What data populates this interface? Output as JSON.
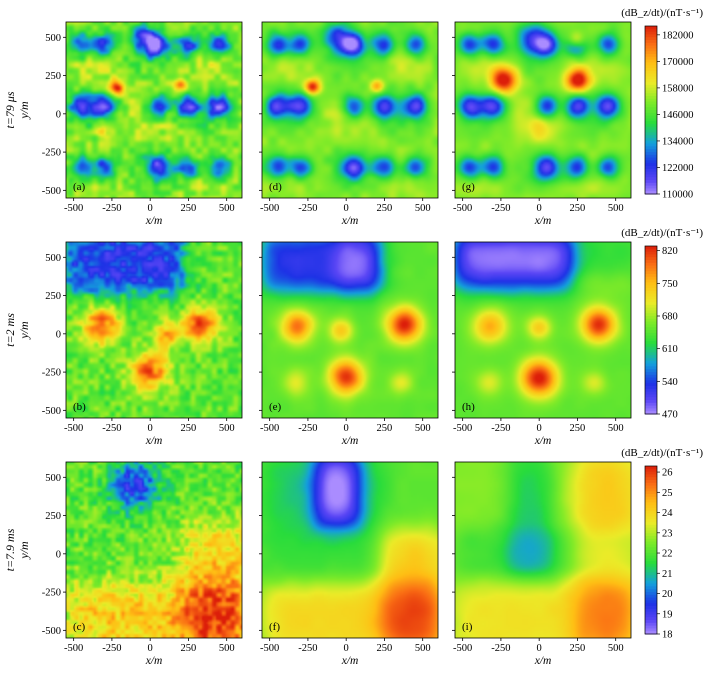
{
  "figure": {
    "rows": [
      {
        "time_label": "t=79 μs",
        "y_label": "y/m",
        "colorbar": {
          "title": "(dB_z/dt)/(nT·s⁻¹)",
          "ticks": [
            "110000",
            "122000",
            "134000",
            "146000",
            "158000",
            "170000",
            "182000"
          ],
          "range": [
            110000,
            186000
          ]
        },
        "panels": [
          {
            "label": "(a)"
          },
          {
            "label": "(d)"
          },
          {
            "label": "(g)"
          }
        ]
      },
      {
        "time_label": "t=2 ms",
        "y_label": "y/m",
        "colorbar": {
          "title": "(dB_z/dt)/(nT·s⁻¹)",
          "ticks": [
            "470",
            "540",
            "610",
            "680",
            "750",
            "820"
          ],
          "range": [
            470,
            830
          ]
        },
        "panels": [
          {
            "label": "(b)"
          },
          {
            "label": "(e)"
          },
          {
            "label": "(h)"
          }
        ]
      },
      {
        "time_label": "t=7.9 ms",
        "y_label": "y/m",
        "colorbar": {
          "title": "(dB_z/dt)/(nT·s⁻¹)",
          "ticks": [
            "18",
            "19",
            "20",
            "21",
            "22",
            "23",
            "24",
            "25",
            "26"
          ],
          "range": [
            18,
            26.3
          ]
        },
        "panels": [
          {
            "label": "(c)"
          },
          {
            "label": "(f)"
          },
          {
            "label": "(i)"
          }
        ]
      }
    ],
    "x_label": "x/m",
    "x_ticks": [
      "-500",
      "-250",
      "0",
      "250",
      "500"
    ],
    "y_ticks": [
      "500",
      "250",
      "0",
      "-250",
      "-500"
    ]
  },
  "chart_data": [
    {
      "type": "heatmap",
      "panel": "(a)",
      "time": "79 μs",
      "x_range": [
        -550,
        600
      ],
      "y_range": [
        -550,
        600
      ],
      "colorbar_range": [
        110000,
        186000
      ],
      "description_values": {
        "background": 140000,
        "low_anomalies": 118000,
        "high_anomalies": [
          {
            "x": -225,
            "y": 175,
            "value": 178000
          },
          {
            "x": 200,
            "y": 175,
            "value": 165000
          }
        ]
      }
    },
    {
      "type": "heatmap",
      "panel": "(d)",
      "time": "79 μs",
      "x_range": [
        -550,
        600
      ],
      "y_range": [
        -550,
        600
      ],
      "colorbar_range": [
        110000,
        186000
      ]
    },
    {
      "type": "heatmap",
      "panel": "(g)",
      "time": "79 μs",
      "x_range": [
        -550,
        600
      ],
      "y_range": [
        -550,
        600
      ],
      "colorbar_range": [
        110000,
        186000
      ]
    },
    {
      "type": "heatmap",
      "panel": "(b)",
      "time": "2 ms",
      "x_range": [
        -550,
        600
      ],
      "y_range": [
        -550,
        600
      ],
      "colorbar_range": [
        470,
        830
      ]
    },
    {
      "type": "heatmap",
      "panel": "(e)",
      "time": "2 ms",
      "x_range": [
        -550,
        600
      ],
      "y_range": [
        -550,
        600
      ],
      "colorbar_range": [
        470,
        830
      ]
    },
    {
      "type": "heatmap",
      "panel": "(h)",
      "time": "2 ms",
      "x_range": [
        -550,
        600
      ],
      "y_range": [
        -550,
        600
      ],
      "colorbar_range": [
        470,
        830
      ]
    },
    {
      "type": "heatmap",
      "panel": "(c)",
      "time": "7.9 ms",
      "x_range": [
        -550,
        600
      ],
      "y_range": [
        -550,
        600
      ],
      "colorbar_range": [
        18,
        26.3
      ]
    },
    {
      "type": "heatmap",
      "panel": "(f)",
      "time": "7.9 ms",
      "x_range": [
        -550,
        600
      ],
      "y_range": [
        -550,
        600
      ],
      "colorbar_range": [
        18,
        26.3
      ]
    },
    {
      "type": "heatmap",
      "panel": "(i)",
      "time": "7.9 ms",
      "x_range": [
        -550,
        600
      ],
      "y_range": [
        -550,
        600
      ],
      "colorbar_range": [
        18,
        26.3
      ]
    }
  ]
}
